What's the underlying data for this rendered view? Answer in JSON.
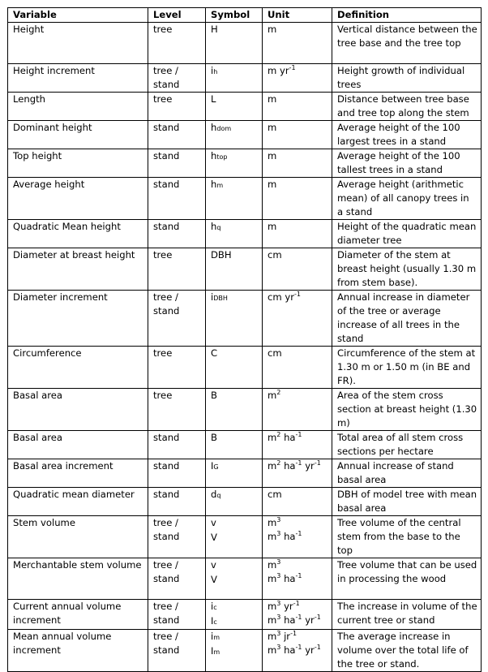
{
  "headers": [
    "Variable",
    "Level",
    "Symbol",
    "Unit",
    "Definition"
  ],
  "rows": [
    {
      "variable": "Height",
      "level": [
        "tree"
      ],
      "symbol": [
        [
          "H",
          ""
        ]
      ],
      "unit": [
        [
          [
            "m",
            ""
          ]
        ]
      ],
      "definition": "Vertical distance between the tree base and the tree top"
    },
    {
      "variable": "Height increment",
      "level": [
        "tree /",
        "stand"
      ],
      "symbol": [
        [
          "i",
          "h"
        ]
      ],
      "unit": [
        [
          [
            "m yr",
            "-1"
          ]
        ]
      ],
      "definition": "Height growth of individual trees"
    },
    {
      "variable": "Length",
      "level": [
        "tree"
      ],
      "symbol": [
        [
          "L",
          ""
        ]
      ],
      "unit": [
        [
          [
            "m",
            ""
          ]
        ]
      ],
      "definition": "Distance between tree base and tree top along the stem"
    },
    {
      "variable": "Dominant height",
      "level": [
        "stand"
      ],
      "symbol": [
        [
          "h",
          "dom"
        ]
      ],
      "unit": [
        [
          [
            "m",
            ""
          ]
        ]
      ],
      "definition": "Average height of the 100 largest trees in a stand"
    },
    {
      "variable": "Top height",
      "level": [
        "stand"
      ],
      "symbol": [
        [
          "h",
          "top"
        ]
      ],
      "unit": [
        [
          [
            "m",
            ""
          ]
        ]
      ],
      "definition": "Average height of the 100 tallest trees in a stand"
    },
    {
      "variable": "Average height",
      "level": [
        "stand"
      ],
      "symbol": [
        [
          "h",
          "m"
        ]
      ],
      "unit": [
        [
          [
            "m",
            ""
          ]
        ]
      ],
      "definition": "Average height (arithmetic mean) of all canopy trees in a stand"
    },
    {
      "variable": "Quadratic Mean height",
      "level": [
        "stand"
      ],
      "symbol": [
        [
          "h",
          "q"
        ]
      ],
      "unit": [
        [
          [
            "m",
            ""
          ]
        ]
      ],
      "definition": "Height of the quadratic mean diameter tree"
    },
    {
      "variable": "Diameter at breast height",
      "level": [
        "tree"
      ],
      "symbol": [
        [
          "DBH",
          ""
        ]
      ],
      "unit": [
        [
          [
            "cm",
            ""
          ]
        ]
      ],
      "definition": "Diameter of the stem at breast height (usually 1.30 m from stem base)."
    },
    {
      "variable": "Diameter increment",
      "level": [
        "tree /",
        "stand"
      ],
      "symbol": [
        [
          "i",
          "DBH"
        ]
      ],
      "unit": [
        [
          [
            "cm yr",
            "-1"
          ]
        ]
      ],
      "definition": "Annual increase in diameter of the tree or average increase of all trees in the stand"
    },
    {
      "variable": "Circumference",
      "level": [
        "tree"
      ],
      "symbol": [
        [
          "C",
          ""
        ]
      ],
      "unit": [
        [
          [
            "cm",
            ""
          ]
        ]
      ],
      "definition": "Circumference of the stem at 1.30 m or 1.50 m (in BE and FR)."
    },
    {
      "variable": "Basal area",
      "level": [
        "tree"
      ],
      "symbol": [
        [
          "B",
          ""
        ]
      ],
      "unit": [
        [
          [
            "m",
            "2"
          ]
        ]
      ],
      "definition": "Area of the stem cross section at breast height (1.30 m)"
    },
    {
      "variable": "Basal area",
      "level": [
        "stand"
      ],
      "symbol": [
        [
          "B",
          ""
        ]
      ],
      "unit": [
        [
          [
            "m",
            "2"
          ],
          [
            " ha",
            "-1"
          ]
        ]
      ],
      "definition": "Total area of all stem cross sections per hectare"
    },
    {
      "variable": "Basal area increment",
      "level": [
        "stand"
      ],
      "symbol": [
        [
          "I",
          "G"
        ]
      ],
      "unit": [
        [
          [
            "m",
            "2"
          ],
          [
            " ha",
            "-1"
          ],
          [
            " yr",
            "-1"
          ]
        ]
      ],
      "definition": "Annual increase of stand basal area"
    },
    {
      "variable": "Quadratic mean diameter",
      "level": [
        "stand"
      ],
      "symbol": [
        [
          "d",
          "q"
        ]
      ],
      "unit": [
        [
          [
            "cm",
            ""
          ]
        ]
      ],
      "definition": "DBH of model tree with mean basal area"
    },
    {
      "variable": "Stem volume",
      "level": [
        "tree /",
        "stand"
      ],
      "symbol": [
        [
          "v",
          ""
        ],
        [
          "V",
          ""
        ]
      ],
      "unit": [
        [
          [
            "m",
            "3"
          ]
        ],
        [
          [
            "m",
            "3"
          ],
          [
            " ha",
            "-1"
          ]
        ]
      ],
      "definition": "Tree volume of the central stem from the base to the top"
    },
    {
      "variable": "Merchantable stem volume",
      "level": [
        "tree /",
        "stand"
      ],
      "symbol": [
        [
          "v",
          ""
        ],
        [
          "V",
          ""
        ]
      ],
      "unit": [
        [
          [
            "m",
            "3"
          ]
        ],
        [
          [
            "m",
            "3"
          ],
          [
            " ha",
            "-1"
          ]
        ]
      ],
      "definition": "Tree volume that can be used in processing the wood"
    },
    {
      "variable": "Current annual volume increment",
      "level": [
        "tree /",
        "stand"
      ],
      "symbol": [
        [
          "i",
          "c"
        ],
        [
          "I",
          "c"
        ]
      ],
      "unit": [
        [
          [
            "m",
            "3"
          ],
          [
            " yr",
            "-1"
          ]
        ],
        [
          [
            "m",
            "3"
          ],
          [
            " ha",
            "-1"
          ],
          [
            " yr",
            "-1"
          ]
        ]
      ],
      "definition": "The increase in volume of the current tree or stand"
    },
    {
      "variable": "Mean annual volume increment",
      "level": [
        "tree /",
        "stand"
      ],
      "symbol": [
        [
          "i",
          "m"
        ],
        [
          "I",
          "m"
        ]
      ],
      "unit": [
        [
          [
            "m",
            "3"
          ],
          [
            " jr",
            "-1"
          ]
        ],
        [
          [
            "m",
            "3"
          ],
          [
            " ha",
            "-1"
          ],
          [
            " yr",
            "-1"
          ]
        ]
      ],
      "definition": "The average increase in volume over the total life of the tree or stand."
    }
  ]
}
